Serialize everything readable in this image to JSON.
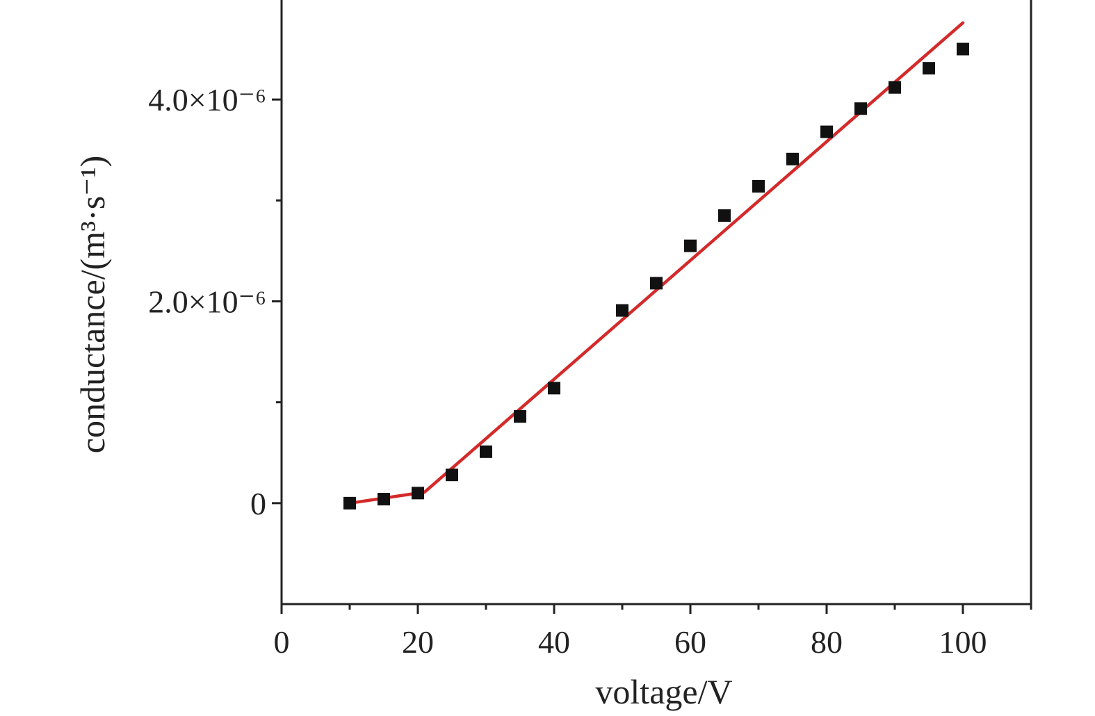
{
  "chart_data": {
    "type": "scatter",
    "title": "",
    "xlabel": "voltage/V",
    "ylabel": "conductance/(m³·s⁻¹)",
    "xlim": [
      0,
      110
    ],
    "ylim": [
      -1e-06,
      5e-06
    ],
    "grid": false,
    "x_ticks": [
      {
        "value": 0,
        "label": "0"
      },
      {
        "value": 20,
        "label": "20"
      },
      {
        "value": 40,
        "label": "40"
      },
      {
        "value": 60,
        "label": "60"
      },
      {
        "value": 80,
        "label": "80"
      },
      {
        "value": 100,
        "label": "100"
      }
    ],
    "x_minor_ticks": [
      10,
      30,
      50,
      70,
      90,
      110
    ],
    "y_ticks": [
      {
        "value": 0,
        "label": "0"
      },
      {
        "value": 2e-06,
        "label": "2.0×10⁻⁶"
      },
      {
        "value": 4e-06,
        "label": "4.0×10⁻⁶"
      }
    ],
    "y_minor_ticks": [
      1e-06,
      3e-06
    ],
    "series": [
      {
        "kind": "scatter",
        "marker": "square",
        "color": "#111111",
        "x": [
          10,
          15,
          20,
          25,
          30,
          35,
          40,
          50,
          55,
          60,
          65,
          70,
          75,
          80,
          85,
          90,
          95,
          100
        ],
        "y": [
          0.0,
          4e-08,
          1e-07,
          2.8e-07,
          5.1e-07,
          8.6e-07,
          1.14e-06,
          1.91e-06,
          2.18e-06,
          2.55e-06,
          2.85e-06,
          3.14e-06,
          3.41e-06,
          3.68e-06,
          3.91e-06,
          4.12e-06,
          4.31e-06,
          4.5e-06
        ]
      },
      {
        "kind": "line",
        "color": "#d42a2a",
        "x": [
          10,
          21,
          100
        ],
        "y": [
          0.0,
          1.1e-07,
          4.76e-06
        ]
      }
    ]
  }
}
